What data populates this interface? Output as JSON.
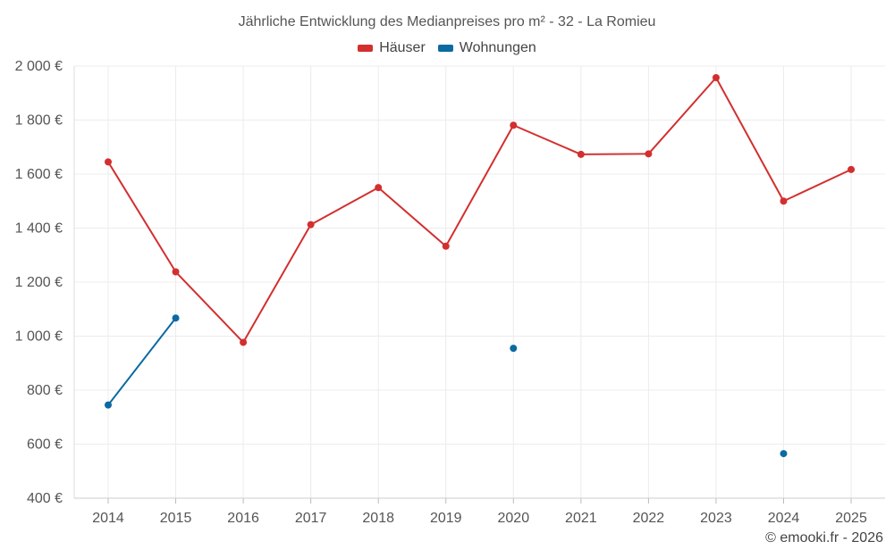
{
  "chart_data": {
    "type": "line",
    "title": "Jährliche Entwicklung des Medianpreises pro m² - 32 - La Romieu",
    "categories": [
      "2014",
      "2015",
      "2016",
      "2017",
      "2018",
      "2019",
      "2020",
      "2021",
      "2022",
      "2023",
      "2024",
      "2025"
    ],
    "series": [
      {
        "name": "Häuser",
        "color": "#d32f2f",
        "values": [
          1645,
          1238,
          977,
          1413,
          1550,
          1333,
          1781,
          1673,
          1675,
          1957,
          1500,
          1617
        ]
      },
      {
        "name": "Wohnungen",
        "color": "#0b6aa2",
        "values": [
          745,
          1067,
          null,
          null,
          null,
          null,
          955,
          null,
          null,
          null,
          565,
          null
        ]
      }
    ],
    "ylim": [
      400,
      2000
    ],
    "yticks": [
      400,
      600,
      800,
      1000,
      1200,
      1400,
      1600,
      1800,
      2000
    ],
    "ytick_labels": [
      "400 €",
      "600 €",
      "800 €",
      "1 000 €",
      "1 200 €",
      "1 400 €",
      "1 600 €",
      "1 800 €",
      "2 000 €"
    ],
    "xlabel": "",
    "ylabel": "",
    "grid": true,
    "legend": "top-center"
  },
  "credit": "© emooki.fr - 2026"
}
